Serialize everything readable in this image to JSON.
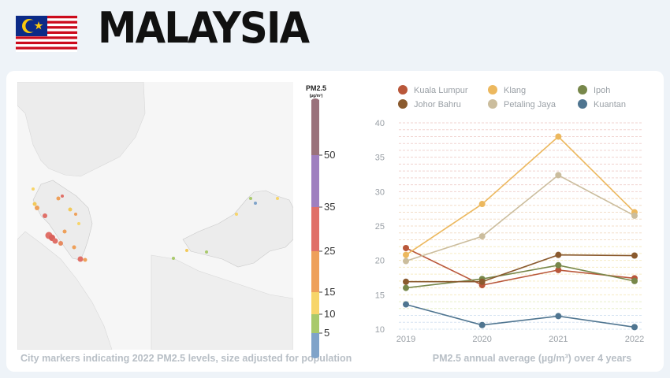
{
  "header": {
    "title": "MALAYSIA"
  },
  "map": {
    "caption": "City markers indicating 2022 PM2.5 levels, size adjusted for population",
    "scale": {
      "title": "PM2.5",
      "unit": "(µg/m³)",
      "ticks": [
        "5",
        "10",
        "15",
        "25",
        "35",
        "50"
      ],
      "segments": [
        {
          "color": "#7fa3c9"
        },
        {
          "color": "#a8c96b"
        },
        {
          "color": "#f7d56a"
        },
        {
          "color": "#eea05a"
        },
        {
          "color": "#e07068"
        },
        {
          "color": "#9f7fbf"
        },
        {
          "color": "#9a727b"
        }
      ]
    }
  },
  "chart_data": {
    "type": "line",
    "caption": "PM2.5 annual average (µg/m³) over 4 years",
    "x": [
      "2019",
      "2020",
      "2021",
      "2022"
    ],
    "ylim": [
      10,
      40
    ],
    "yticks": [
      10,
      15,
      20,
      25,
      30,
      35,
      40
    ],
    "grid": true,
    "legend": "top",
    "series": [
      {
        "name": "Kuala Lumpur",
        "color": "#b9573a",
        "values": [
          21.8,
          16.4,
          18.6,
          17.4
        ]
      },
      {
        "name": "Klang",
        "color": "#ecb85e",
        "values": [
          20.8,
          28.2,
          38.0,
          27.0
        ]
      },
      {
        "name": "Ipoh",
        "color": "#77874a",
        "values": [
          16.0,
          17.3,
          19.3,
          17.0
        ]
      },
      {
        "name": "Johor Bahru",
        "color": "#8a5a2e",
        "values": [
          16.9,
          16.9,
          20.8,
          20.7
        ]
      },
      {
        "name": "Petaling Jaya",
        "color": "#cbbd9d",
        "values": [
          19.9,
          23.5,
          32.4,
          26.5
        ]
      },
      {
        "name": "Kuantan",
        "color": "#4f7590",
        "values": [
          13.6,
          10.6,
          11.9,
          10.3
        ]
      }
    ]
  }
}
